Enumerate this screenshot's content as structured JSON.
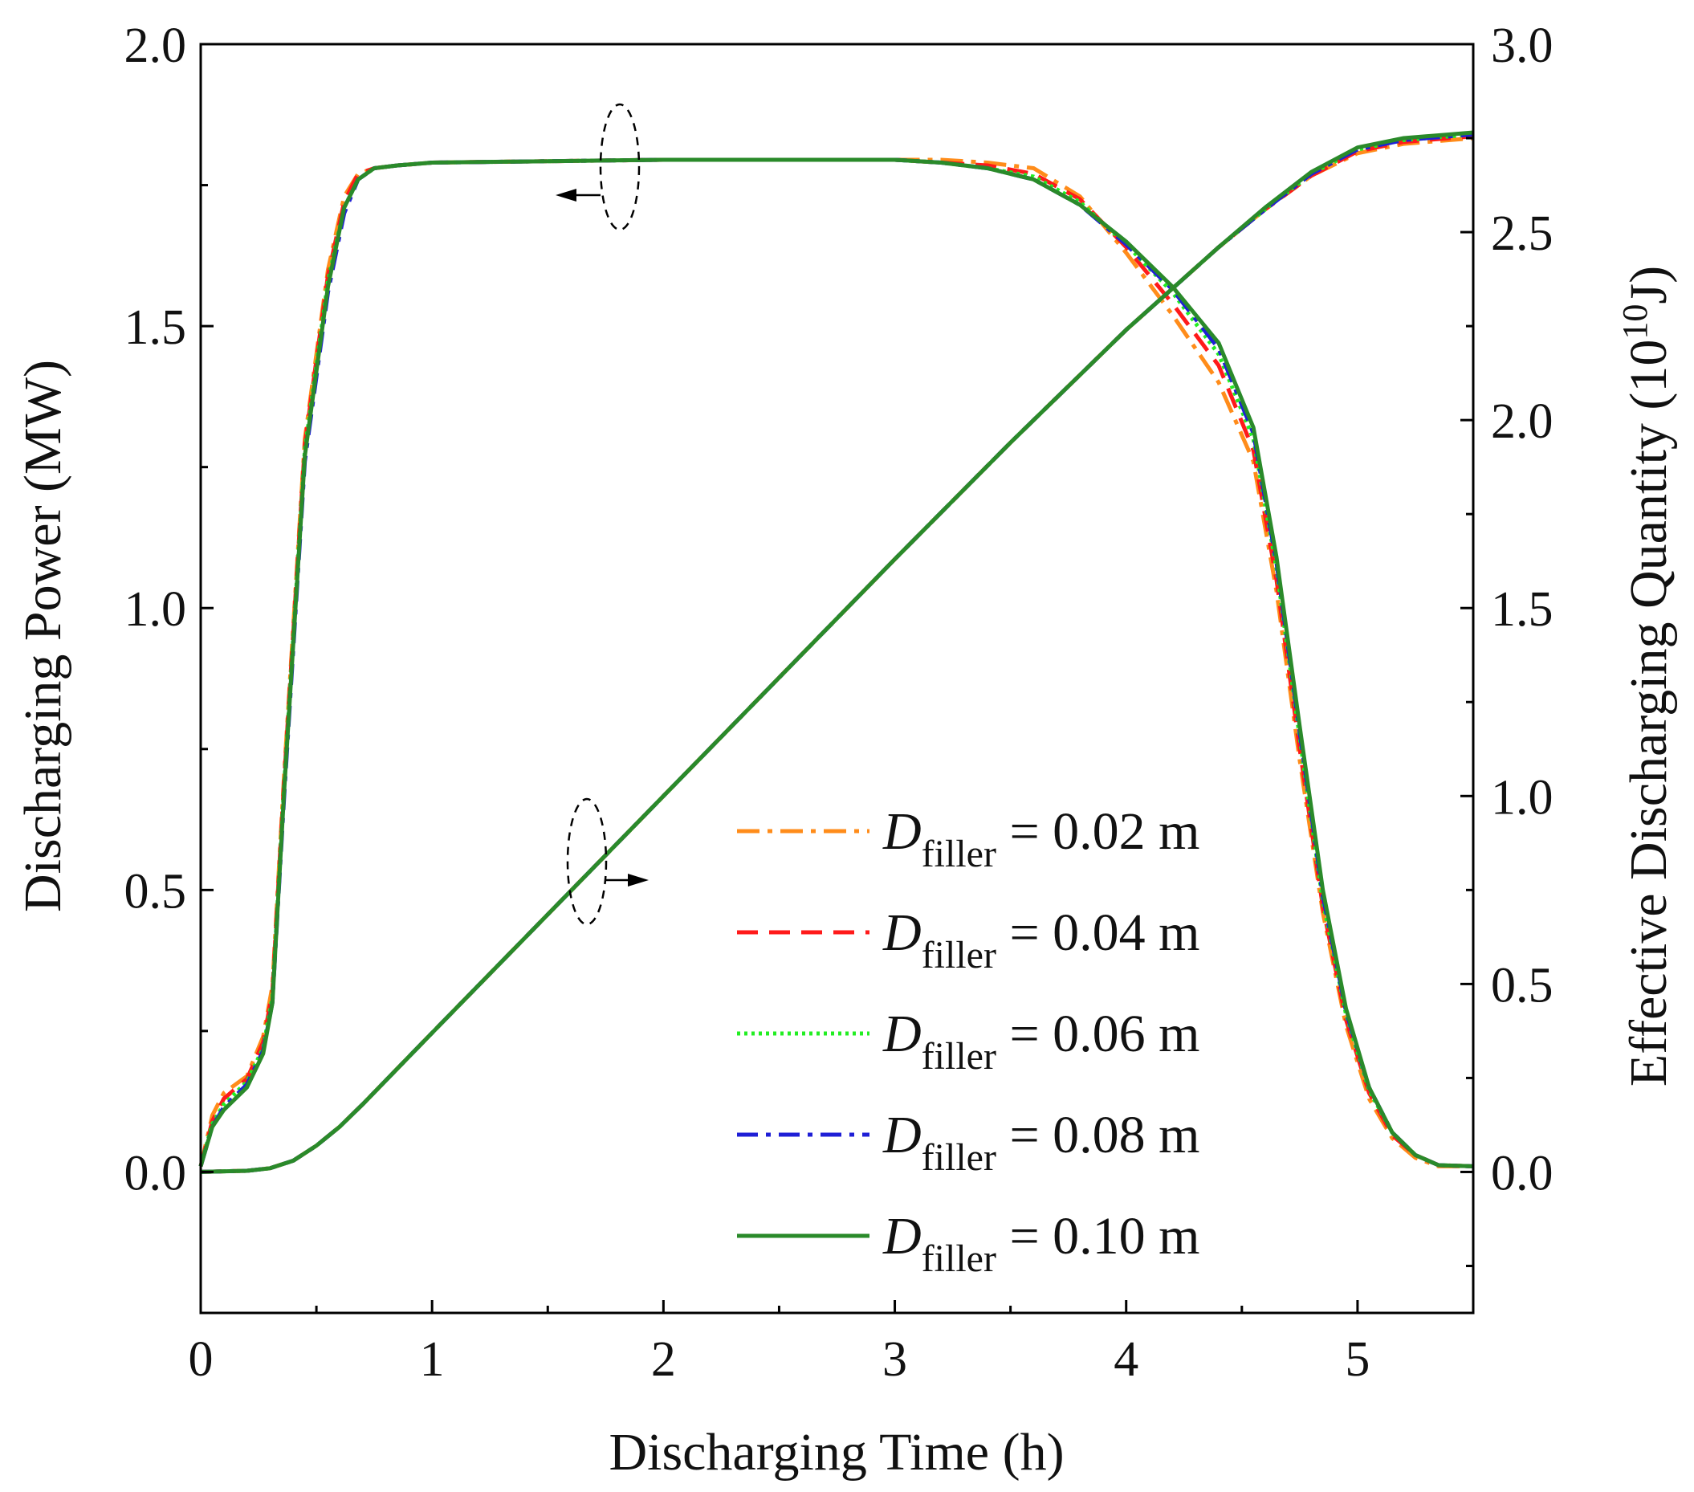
{
  "chart_data": {
    "type": "line",
    "xlabel": "Discharging Time (h)",
    "ylabel_left": "Discharging Power (MW)",
    "ylabel_right": {
      "prefix": "Effective Discharging Quantity (10",
      "exp": "10",
      "suffix": "J)"
    },
    "xlim": [
      0,
      5.5
    ],
    "ylim_left": [
      -0.25,
      2.0
    ],
    "ylim_right": [
      -0.375,
      3.0
    ],
    "x_ticks": [
      "0",
      "1",
      "2",
      "3",
      "4",
      "5"
    ],
    "y_left_ticks": [
      "0.0",
      "0.5",
      "1.0",
      "1.5",
      "2.0"
    ],
    "y_right_ticks": [
      "0.0",
      "0.5",
      "1.0",
      "1.5",
      "2.0",
      "2.5",
      "3.0"
    ],
    "legend": [
      {
        "var": "D",
        "sub": "filler",
        "text": " = 0.02 m",
        "color": "#ff8c1a",
        "dash": "28,10,6,10"
      },
      {
        "var": "D",
        "sub": "filler",
        "text": " = 0.04 m",
        "color": "#ff1a1a",
        "dash": "26,14"
      },
      {
        "var": "D",
        "sub": "filler",
        "text": " = 0.06 m",
        "color": "#22ee22",
        "dash": "4,5"
      },
      {
        "var": "D",
        "sub": "filler",
        "text": " = 0.08 m",
        "color": "#1f1fd6",
        "dash": "26,10,6,10"
      },
      {
        "var": "D",
        "sub": "filler",
        "text": " = 0.10 m",
        "color": "#2a8a2a",
        "dash": ""
      }
    ],
    "series": [
      {
        "name": "D_filler = 0.02 m (power)",
        "axis": "left",
        "color": "#ff8c1a",
        "dash": "28,10,6,10",
        "x": [
          0,
          0.05,
          0.1,
          0.2,
          0.27,
          0.31,
          0.36,
          0.45,
          0.55,
          0.62,
          0.68,
          0.75,
          0.85,
          1.0,
          2.0,
          3.0,
          3.2,
          3.4,
          3.6,
          3.8,
          4.0,
          4.2,
          4.4,
          4.55,
          4.65,
          4.75,
          4.85,
          4.95,
          5.05,
          5.15,
          5.25,
          5.35,
          5.5
        ],
        "y": [
          0.01,
          0.1,
          0.14,
          0.17,
          0.24,
          0.33,
          0.7,
          1.3,
          1.6,
          1.73,
          1.77,
          1.78,
          1.785,
          1.79,
          1.795,
          1.795,
          1.795,
          1.79,
          1.78,
          1.73,
          1.63,
          1.52,
          1.4,
          1.26,
          1.03,
          0.73,
          0.46,
          0.26,
          0.13,
          0.06,
          0.025,
          0.01,
          0.01
        ]
      },
      {
        "name": "D_filler = 0.04 m (power)",
        "axis": "left",
        "color": "#ff1a1a",
        "dash": "26,14",
        "x": [
          0,
          0.05,
          0.1,
          0.2,
          0.27,
          0.31,
          0.36,
          0.45,
          0.55,
          0.62,
          0.68,
          0.75,
          0.85,
          1.0,
          2.0,
          3.0,
          3.2,
          3.4,
          3.6,
          3.8,
          4.0,
          4.2,
          4.4,
          4.55,
          4.65,
          4.75,
          4.85,
          4.95,
          5.05,
          5.15,
          5.25,
          5.35,
          5.5
        ],
        "y": [
          0.01,
          0.09,
          0.13,
          0.165,
          0.23,
          0.32,
          0.69,
          1.29,
          1.59,
          1.72,
          1.77,
          1.78,
          1.785,
          1.79,
          1.795,
          1.795,
          1.79,
          1.785,
          1.77,
          1.725,
          1.64,
          1.54,
          1.43,
          1.28,
          1.05,
          0.75,
          0.47,
          0.27,
          0.14,
          0.065,
          0.03,
          0.012,
          0.01
        ]
      },
      {
        "name": "D_filler = 0.06 m (power)",
        "axis": "left",
        "color": "#22ee22",
        "dash": "4,5",
        "x": [
          0,
          0.05,
          0.1,
          0.2,
          0.27,
          0.31,
          0.36,
          0.45,
          0.55,
          0.62,
          0.68,
          0.75,
          0.85,
          1.0,
          2.0,
          3.0,
          3.2,
          3.4,
          3.6,
          3.8,
          4.0,
          4.2,
          4.4,
          4.55,
          4.65,
          4.75,
          4.85,
          4.95,
          5.05,
          5.15,
          5.25,
          5.35,
          5.5
        ],
        "y": [
          0.01,
          0.085,
          0.12,
          0.16,
          0.22,
          0.31,
          0.68,
          1.28,
          1.58,
          1.71,
          1.76,
          1.78,
          1.785,
          1.79,
          1.795,
          1.795,
          1.79,
          1.78,
          1.765,
          1.72,
          1.645,
          1.56,
          1.45,
          1.3,
          1.07,
          0.77,
          0.48,
          0.28,
          0.145,
          0.07,
          0.03,
          0.012,
          0.01
        ]
      },
      {
        "name": "D_filler = 0.08 m (power)",
        "axis": "left",
        "color": "#1f1fd6",
        "dash": "26,10,6,10",
        "x": [
          0,
          0.05,
          0.1,
          0.2,
          0.27,
          0.31,
          0.36,
          0.45,
          0.55,
          0.62,
          0.68,
          0.75,
          0.85,
          1.0,
          2.0,
          3.0,
          3.2,
          3.4,
          3.6,
          3.8,
          4.0,
          4.2,
          4.4,
          4.55,
          4.65,
          4.75,
          4.85,
          4.95,
          5.05,
          5.15,
          5.25,
          5.35,
          5.5
        ],
        "y": [
          0.01,
          0.08,
          0.115,
          0.155,
          0.215,
          0.3,
          0.66,
          1.26,
          1.56,
          1.7,
          1.76,
          1.78,
          1.785,
          1.79,
          1.795,
          1.795,
          1.79,
          1.78,
          1.76,
          1.715,
          1.645,
          1.565,
          1.46,
          1.31,
          1.08,
          0.78,
          0.49,
          0.285,
          0.15,
          0.07,
          0.03,
          0.012,
          0.01
        ]
      },
      {
        "name": "D_filler = 0.10 m (power)",
        "axis": "left",
        "color": "#2a8a2a",
        "dash": "",
        "x": [
          0,
          0.05,
          0.1,
          0.2,
          0.27,
          0.31,
          0.36,
          0.45,
          0.55,
          0.62,
          0.68,
          0.75,
          0.85,
          1.0,
          2.0,
          3.0,
          3.2,
          3.4,
          3.6,
          3.8,
          4.0,
          4.2,
          4.4,
          4.55,
          4.65,
          4.75,
          4.85,
          4.95,
          5.05,
          5.15,
          5.25,
          5.35,
          5.5
        ],
        "y": [
          0.01,
          0.08,
          0.11,
          0.15,
          0.21,
          0.3,
          0.67,
          1.27,
          1.57,
          1.71,
          1.76,
          1.78,
          1.785,
          1.79,
          1.795,
          1.795,
          1.79,
          1.78,
          1.76,
          1.715,
          1.65,
          1.57,
          1.47,
          1.32,
          1.09,
          0.79,
          0.5,
          0.29,
          0.15,
          0.07,
          0.03,
          0.012,
          0.01
        ]
      },
      {
        "name": "D_filler = 0.02 m (quantity)",
        "axis": "right",
        "color": "#ff8c1a",
        "dash": "28,10,6,10",
        "x": [
          0,
          0.2,
          0.3,
          0.4,
          0.5,
          0.6,
          0.7,
          1.0,
          2.0,
          3.0,
          3.5,
          3.8,
          4.0,
          4.2,
          4.4,
          4.6,
          4.8,
          5.0,
          5.2,
          5.4,
          5.5
        ],
        "y": [
          0.0,
          0.003,
          0.01,
          0.03,
          0.07,
          0.12,
          0.18,
          0.37,
          1.0,
          1.63,
          1.94,
          2.12,
          2.24,
          2.35,
          2.46,
          2.56,
          2.65,
          2.71,
          2.735,
          2.745,
          2.75
        ]
      },
      {
        "name": "D_filler = 0.04 m (quantity)",
        "axis": "right",
        "color": "#ff1a1a",
        "dash": "26,14",
        "x": [
          0,
          0.2,
          0.3,
          0.4,
          0.5,
          0.6,
          0.7,
          1.0,
          2.0,
          3.0,
          3.5,
          3.8,
          4.0,
          4.2,
          4.4,
          4.6,
          4.8,
          5.0,
          5.2,
          5.4,
          5.5
        ],
        "y": [
          0.0,
          0.003,
          0.01,
          0.03,
          0.07,
          0.12,
          0.18,
          0.37,
          1.0,
          1.63,
          1.94,
          2.12,
          2.24,
          2.35,
          2.46,
          2.56,
          2.65,
          2.715,
          2.74,
          2.75,
          2.755
        ]
      },
      {
        "name": "D_filler = 0.06 m (quantity)",
        "axis": "right",
        "color": "#22ee22",
        "dash": "4,5",
        "x": [
          0,
          0.2,
          0.3,
          0.4,
          0.5,
          0.6,
          0.7,
          1.0,
          2.0,
          3.0,
          3.5,
          3.8,
          4.0,
          4.2,
          4.4,
          4.6,
          4.8,
          5.0,
          5.2,
          5.4,
          5.5
        ],
        "y": [
          0.0,
          0.003,
          0.01,
          0.03,
          0.07,
          0.12,
          0.18,
          0.37,
          1.0,
          1.63,
          1.94,
          2.12,
          2.24,
          2.35,
          2.46,
          2.56,
          2.655,
          2.72,
          2.745,
          2.755,
          2.76
        ]
      },
      {
        "name": "D_filler = 0.08 m (quantity)",
        "axis": "right",
        "color": "#1f1fd6",
        "dash": "26,10,6,10",
        "x": [
          0,
          0.2,
          0.3,
          0.4,
          0.5,
          0.6,
          0.7,
          1.0,
          2.0,
          3.0,
          3.5,
          3.8,
          4.0,
          4.2,
          4.4,
          4.6,
          4.8,
          5.0,
          5.2,
          5.4,
          5.5
        ],
        "y": [
          0.0,
          0.003,
          0.01,
          0.03,
          0.07,
          0.12,
          0.18,
          0.37,
          1.0,
          1.63,
          1.94,
          2.12,
          2.24,
          2.35,
          2.46,
          2.56,
          2.655,
          2.72,
          2.745,
          2.755,
          2.76
        ]
      },
      {
        "name": "D_filler = 0.10 m (quantity)",
        "axis": "right",
        "color": "#2a8a2a",
        "dash": "",
        "x": [
          0,
          0.2,
          0.3,
          0.4,
          0.5,
          0.6,
          0.7,
          1.0,
          2.0,
          3.0,
          3.5,
          3.8,
          4.0,
          4.2,
          4.4,
          4.6,
          4.8,
          5.0,
          5.2,
          5.4,
          5.5
        ],
        "y": [
          0.0,
          0.003,
          0.01,
          0.03,
          0.07,
          0.12,
          0.18,
          0.37,
          1.0,
          1.63,
          1.94,
          2.12,
          2.24,
          2.35,
          2.46,
          2.565,
          2.66,
          2.725,
          2.75,
          2.76,
          2.765
        ]
      }
    ]
  }
}
